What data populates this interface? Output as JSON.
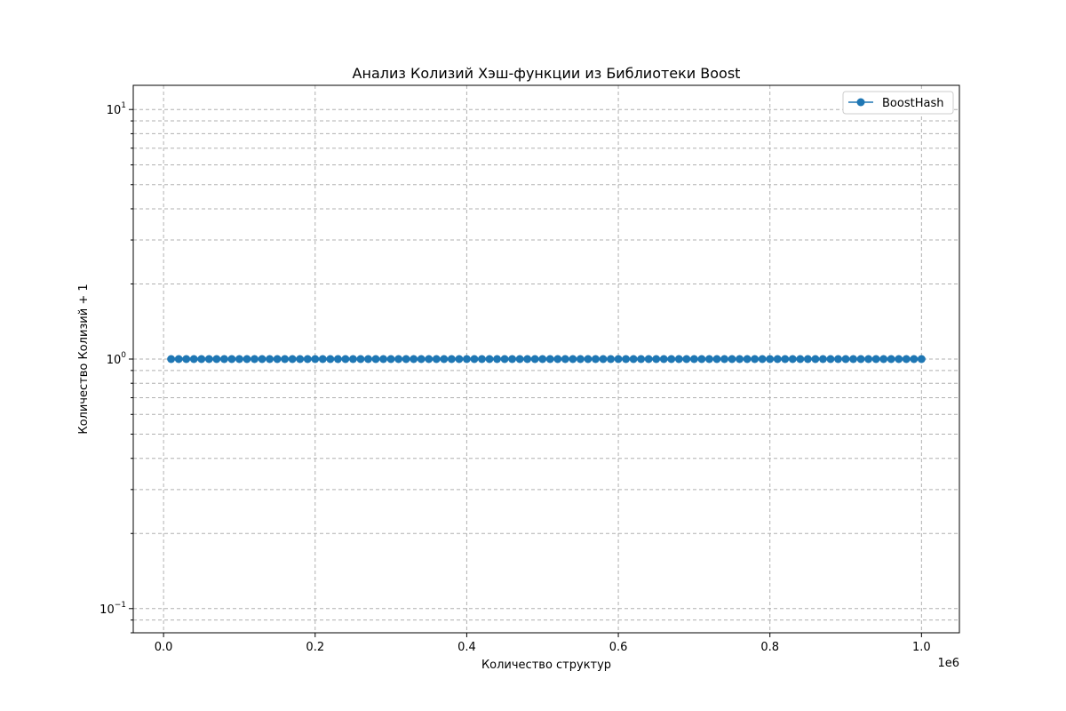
{
  "chart_data": {
    "type": "line",
    "title": "Анализ Колизий Хэш-функции из Библиотеки Boost",
    "xlabel": "Количество структур",
    "ylabel": "Количество Колизий + 1",
    "x_offset_label": "1e6",
    "x_scale": "linear",
    "y_scale": "log",
    "xlim": [
      -40000,
      1050000
    ],
    "ylim": [
      0.08,
      12.5
    ],
    "x_ticks": [
      0,
      200000,
      400000,
      600000,
      800000,
      1000000
    ],
    "x_tick_labels": [
      "0.0",
      "0.2",
      "0.4",
      "0.6",
      "0.8",
      "1.0"
    ],
    "y_ticks": [
      0.1,
      1,
      10
    ],
    "y_tick_labels": [
      {
        "base": "10",
        "exp": "−1"
      },
      {
        "base": "10",
        "exp": "0"
      },
      {
        "base": "10",
        "exp": "1"
      }
    ],
    "grid": true,
    "legend_position": "top-right",
    "series": [
      {
        "name": "BoostHash",
        "color": "#1f77b4",
        "marker": "circle",
        "x": [
          10000,
          20000,
          30000,
          40000,
          50000,
          60000,
          70000,
          80000,
          90000,
          100000,
          110000,
          120000,
          130000,
          140000,
          150000,
          160000,
          170000,
          180000,
          190000,
          200000,
          210000,
          220000,
          230000,
          240000,
          250000,
          260000,
          270000,
          280000,
          290000,
          300000,
          310000,
          320000,
          330000,
          340000,
          350000,
          360000,
          370000,
          380000,
          390000,
          400000,
          410000,
          420000,
          430000,
          440000,
          450000,
          460000,
          470000,
          480000,
          490000,
          500000,
          510000,
          520000,
          530000,
          540000,
          550000,
          560000,
          570000,
          580000,
          590000,
          600000,
          610000,
          620000,
          630000,
          640000,
          650000,
          660000,
          670000,
          680000,
          690000,
          700000,
          710000,
          720000,
          730000,
          740000,
          750000,
          760000,
          770000,
          780000,
          790000,
          800000,
          810000,
          820000,
          830000,
          840000,
          850000,
          860000,
          870000,
          880000,
          890000,
          900000,
          910000,
          920000,
          930000,
          940000,
          950000,
          960000,
          970000,
          980000,
          990000,
          1000000
        ],
        "y": [
          1,
          1,
          1,
          1,
          1,
          1,
          1,
          1,
          1,
          1,
          1,
          1,
          1,
          1,
          1,
          1,
          1,
          1,
          1,
          1,
          1,
          1,
          1,
          1,
          1,
          1,
          1,
          1,
          1,
          1,
          1,
          1,
          1,
          1,
          1,
          1,
          1,
          1,
          1,
          1,
          1,
          1,
          1,
          1,
          1,
          1,
          1,
          1,
          1,
          1,
          1,
          1,
          1,
          1,
          1,
          1,
          1,
          1,
          1,
          1,
          1,
          1,
          1,
          1,
          1,
          1,
          1,
          1,
          1,
          1,
          1,
          1,
          1,
          1,
          1,
          1,
          1,
          1,
          1,
          1,
          1,
          1,
          1,
          1,
          1,
          1,
          1,
          1,
          1,
          1,
          1,
          1,
          1,
          1,
          1,
          1,
          1,
          1,
          1,
          1
        ]
      }
    ]
  }
}
